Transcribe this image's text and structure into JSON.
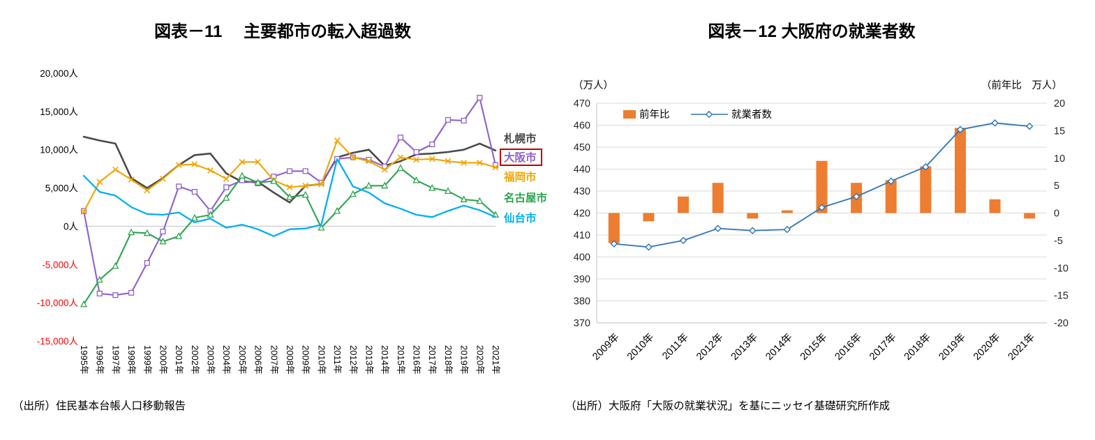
{
  "page": {
    "background": "#FFFFFF"
  },
  "chart_data": [
    {
      "id": "figure-11",
      "type": "line",
      "title": "図表－11　 主要都市の転入超過数",
      "x": [
        "1995年",
        "1996年",
        "1997年",
        "1998年",
        "1999年",
        "2000年",
        "2001年",
        "2002年",
        "2003年",
        "2004年",
        "2005年",
        "2006年",
        "2007年",
        "2008年",
        "2009年",
        "2010年",
        "2011年",
        "2012年",
        "2013年",
        "2014年",
        "2015年",
        "2016年",
        "2017年",
        "2018年",
        "2019年",
        "2020年",
        "2021年"
      ],
      "y_axis": {
        "min": -15000,
        "max": 20000,
        "step": 5000,
        "tick_suffix": "人",
        "negative_tick_color": "#FF0000"
      },
      "grid": false,
      "legend_position": "right-of-plot",
      "highlight": {
        "series": "大阪市",
        "box_color": "#C00000"
      },
      "series": [
        {
          "name": "札幌市",
          "color": "#4A4A4A",
          "marker": "none",
          "width": 2.6,
          "values": [
            11700,
            11200,
            10800,
            6300,
            5000,
            6300,
            8000,
            9300,
            9500,
            6900,
            5800,
            5800,
            4400,
            3100,
            5300,
            5500,
            9000,
            9600,
            10000,
            7900,
            8500,
            9400,
            9500,
            9700,
            10000,
            10800,
            9900
          ]
        },
        {
          "name": "大阪市",
          "color": "#8E62C8",
          "marker": "square-open",
          "width": 2.1,
          "values": [
            2000,
            -8800,
            -9000,
            -8700,
            -4800,
            -700,
            5200,
            4500,
            2000,
            5100,
            6000,
            5600,
            6500,
            7200,
            7200,
            5700,
            8800,
            9000,
            8700,
            7800,
            11600,
            9700,
            10700,
            13900,
            13800,
            16800,
            8000
          ]
        },
        {
          "name": "福岡市",
          "color": "#F0A500",
          "marker": "x",
          "width": 2.1,
          "values": [
            1900,
            5800,
            7400,
            6100,
            4700,
            6200,
            8000,
            8100,
            7300,
            6200,
            8400,
            8400,
            6000,
            5100,
            5300,
            5500,
            11200,
            9000,
            8500,
            7400,
            9000,
            8700,
            8800,
            8500,
            8300,
            8300,
            7700
          ]
        },
        {
          "name": "名古屋市",
          "color": "#2DA44E",
          "marker": "triangle-open",
          "width": 2.1,
          "values": [
            -10200,
            -7000,
            -5200,
            -800,
            -900,
            -2000,
            -1300,
            1100,
            1500,
            3700,
            6600,
            5700,
            5900,
            3800,
            4100,
            -200,
            2000,
            4200,
            5300,
            5300,
            7600,
            6000,
            5000,
            4600,
            3500,
            3300,
            1500
          ]
        },
        {
          "name": "仙台市",
          "color": "#00B0F0",
          "marker": "none",
          "width": 2.3,
          "values": [
            6600,
            4500,
            4000,
            2500,
            1600,
            1500,
            1800,
            500,
            1000,
            -200,
            200,
            -400,
            -1300,
            -400,
            -300,
            200,
            8800,
            5200,
            4400,
            3000,
            2300,
            1500,
            1200,
            2000,
            2700,
            2100,
            1200
          ]
        }
      ],
      "source": "（出所）住民基本台帳人口移動報告"
    },
    {
      "id": "figure-12",
      "type": "bar+line",
      "title": "図表－12 大阪府の就業者数",
      "categories": [
        "2009年",
        "2010年",
        "2011年",
        "2012年",
        "2013年",
        "2014年",
        "2015年",
        "2016年",
        "2017年",
        "2018年",
        "2019年",
        "2020年",
        "2021年"
      ],
      "left_axis": {
        "unit": "（万人）",
        "min": 370,
        "max": 470,
        "step": 10
      },
      "right_axis": {
        "unit": "（前年比　万人）",
        "min": -20,
        "max": 20,
        "step": 5
      },
      "grid": true,
      "legend_position": "top-inside",
      "series": [
        {
          "name": "前年比",
          "chart": "bar",
          "axis": "right",
          "color": "#ED7D31",
          "values": [
            -5.5,
            -1.5,
            3,
            5.5,
            -1,
            0.5,
            9.5,
            5.5,
            6,
            8.5,
            15.5,
            2.5,
            -1
          ]
        },
        {
          "name": "就業者数",
          "chart": "line",
          "axis": "left",
          "color": "#2E75B6",
          "marker": "diamond-open",
          "values": [
            406,
            404.5,
            407.5,
            413,
            412,
            412.5,
            422.5,
            427.5,
            434.5,
            441,
            458,
            461,
            459.5
          ]
        }
      ],
      "source": "（出所）大阪府「大阪の就業状況」を基にニッセイ基礎研究所作成"
    }
  ]
}
